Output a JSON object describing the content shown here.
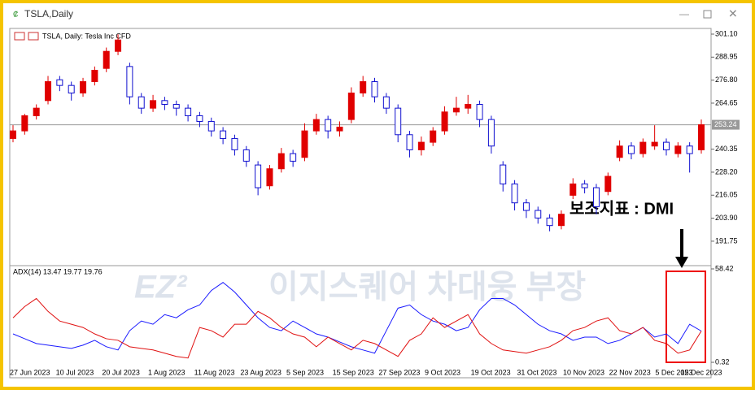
{
  "window": {
    "title": "TSLA,Daily"
  },
  "chart_header": "TSLA, Daily:  Tesla Inc CFD",
  "annotation": "보조지표 : DMI",
  "watermark": {
    "logo": "EZ²",
    "text": "이지스퀘어 차대웅 부장"
  },
  "time_axis": [
    "27 Jun 2023",
    "10 Jul 2023",
    "20 Jul 2023",
    "1 Aug 2023",
    "11 Aug 2023",
    "23 Aug 2023",
    "5 Sep 2023",
    "15 Sep 2023",
    "27 Sep 2023",
    "9 Oct 2023",
    "19 Oct 2023",
    "31 Oct 2023",
    "10 Nov 2023",
    "22 Nov 2023",
    "5 Dec 2023",
    "15 Dec 2023"
  ],
  "chart_data": [
    {
      "type": "candlestick",
      "up_color": "#e00000",
      "down_color": "#1010d0",
      "current_price": {
        "value": 253.24,
        "label": "253.24"
      },
      "ylim": [
        179.7,
        304.1
      ],
      "yticks": [
        {
          "value": 301.1,
          "label": "301.10"
        },
        288.95,
        {
          "value": 276.8,
          "label": "276.80"
        },
        264.65,
        240.35,
        {
          "value": 228.2,
          "label": "228.20"
        },
        216.05,
        {
          "value": 203.9,
          "label": "203.90"
        },
        191.75
      ],
      "open": [
        246,
        250,
        258,
        266,
        277,
        274,
        270,
        276,
        283,
        292,
        284,
        268,
        262,
        266,
        264,
        262,
        258,
        255,
        250,
        246,
        240,
        232,
        221,
        230,
        238,
        236,
        250,
        256,
        250,
        256,
        270,
        276,
        268,
        262,
        248,
        240,
        244,
        250,
        260,
        262,
        264,
        256,
        232,
        222,
        212,
        208,
        204,
        200,
        216,
        222,
        220,
        218,
        236,
        242,
        238,
        242,
        244,
        238,
        242,
        240
      ],
      "high": [
        253,
        259,
        264,
        279,
        279,
        276,
        278,
        284,
        294,
        301,
        286,
        270,
        269,
        268,
        266,
        264,
        260,
        257,
        252,
        248,
        242,
        234,
        232,
        241,
        240,
        254,
        259,
        258,
        255,
        273,
        279,
        278,
        270,
        264,
        250,
        247,
        252,
        263,
        268,
        269,
        266,
        258,
        234,
        224,
        214,
        210,
        206,
        208,
        225,
        224,
        222,
        228,
        245,
        244,
        246,
        253,
        246,
        244,
        244,
        256
      ],
      "low": [
        244,
        248,
        256,
        264,
        271,
        266,
        268,
        274,
        281,
        290,
        264,
        259,
        260,
        261,
        258,
        255,
        252,
        247,
        243,
        237,
        231,
        216,
        219,
        228,
        231,
        234,
        248,
        246,
        247,
        254,
        268,
        265,
        259,
        244,
        236,
        237,
        242,
        248,
        258,
        259,
        252,
        238,
        218,
        208,
        204,
        201,
        197,
        198,
        214,
        217,
        206,
        216,
        234,
        235,
        236,
        240,
        237,
        236,
        228,
        238
      ],
      "close": [
        250,
        258,
        262,
        276,
        274,
        270,
        276,
        282,
        292,
        298,
        268,
        262,
        266,
        264,
        262,
        258,
        255,
        250,
        246,
        240,
        234,
        220,
        230,
        238,
        234,
        250,
        256,
        250,
        252,
        270,
        276,
        268,
        262,
        248,
        240,
        244,
        250,
        260,
        262,
        264,
        256,
        242,
        222,
        212,
        208,
        204,
        200,
        206,
        222,
        220,
        210,
        226,
        242,
        238,
        244,
        244,
        240,
        242,
        238,
        253.24
      ]
    },
    {
      "type": "line",
      "indicator": "ADX(14) 13.47 19.77 19.76",
      "ylim": [
        -9.28,
        59.94
      ],
      "yticks": [
        58.42,
        0.32
      ],
      "series": [
        {
          "color": "#1a1aff",
          "values": [
            18,
            15,
            12,
            11,
            10,
            9,
            11,
            14,
            10,
            8,
            20,
            26,
            24,
            30,
            28,
            33,
            36,
            45,
            50,
            44,
            36,
            28,
            22,
            20,
            26,
            22,
            18,
            16,
            13,
            10,
            8,
            6,
            20,
            34,
            36,
            30,
            26,
            24,
            20,
            22,
            33,
            40,
            40,
            36,
            30,
            24,
            20,
            18,
            14,
            16,
            16,
            12,
            14,
            18,
            22,
            16,
            18,
            12,
            24,
            19.77
          ]
        },
        {
          "color": "#e01010",
          "values": [
            28,
            35,
            40,
            32,
            26,
            24,
            22,
            18,
            15,
            14,
            10,
            9,
            8,
            6,
            4,
            3,
            22,
            20,
            16,
            24,
            24,
            32,
            28,
            22,
            18,
            16,
            10,
            16,
            12,
            8,
            14,
            12,
            8,
            4,
            14,
            18,
            28,
            22,
            26,
            30,
            18,
            12,
            8,
            7,
            6,
            8,
            10,
            14,
            20,
            22,
            26,
            28,
            20,
            18,
            22,
            14,
            12,
            6,
            8,
            19.76
          ]
        }
      ]
    }
  ]
}
